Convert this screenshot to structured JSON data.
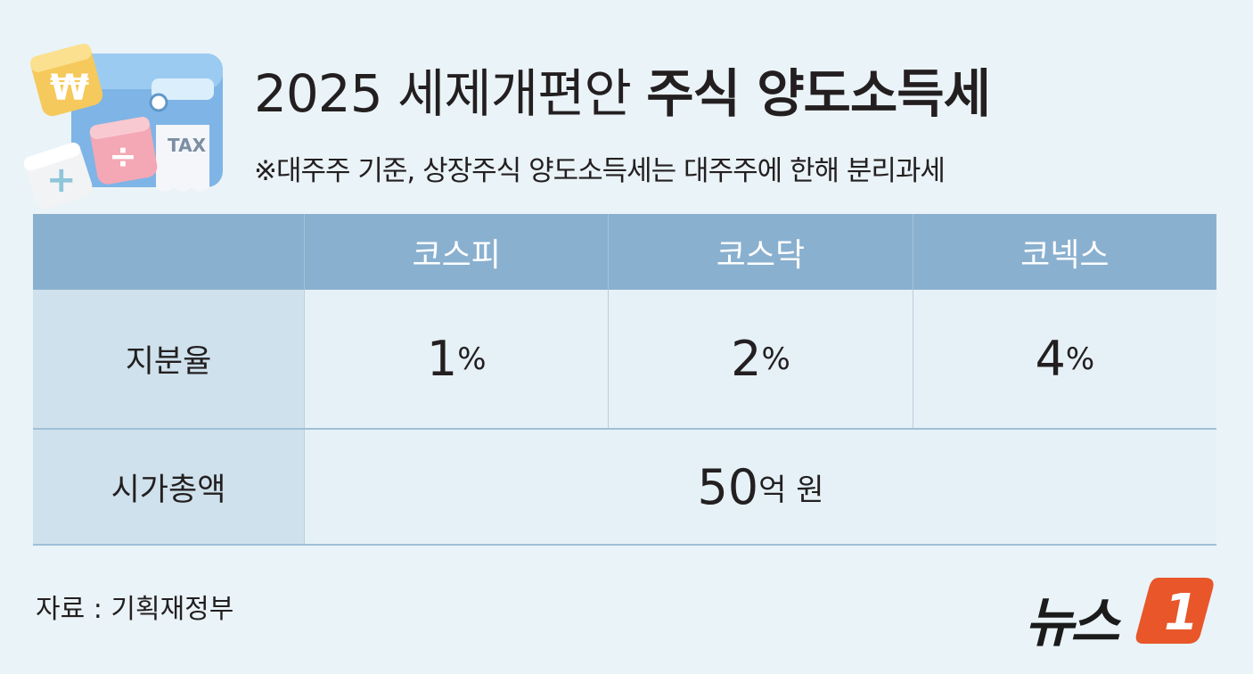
{
  "title": {
    "light": "2025 세제개편안 ",
    "bold": "주식 양도소득세"
  },
  "subtitle": "※대주주 기준, 상장주식 양도소득세는 대주주에 한해 분리과세",
  "illustration": {
    "won_symbol": "₩",
    "plus_symbol": "+",
    "divide_symbol": "÷",
    "tax_label": "TAX"
  },
  "table": {
    "headers": [
      "",
      "코스피",
      "코스닥",
      "코넥스"
    ],
    "row1": {
      "label": "지분율",
      "values": [
        {
          "num": "1",
          "unit": "%"
        },
        {
          "num": "2",
          "unit": "%"
        },
        {
          "num": "4",
          "unit": "%"
        }
      ]
    },
    "row2": {
      "label": "시가총액",
      "num": "50",
      "unit": "억 원"
    }
  },
  "source": "자료 : 기획재정부",
  "logo": {
    "text": "뉴스",
    "mark": "1",
    "mark_color": "#e8562a"
  }
}
